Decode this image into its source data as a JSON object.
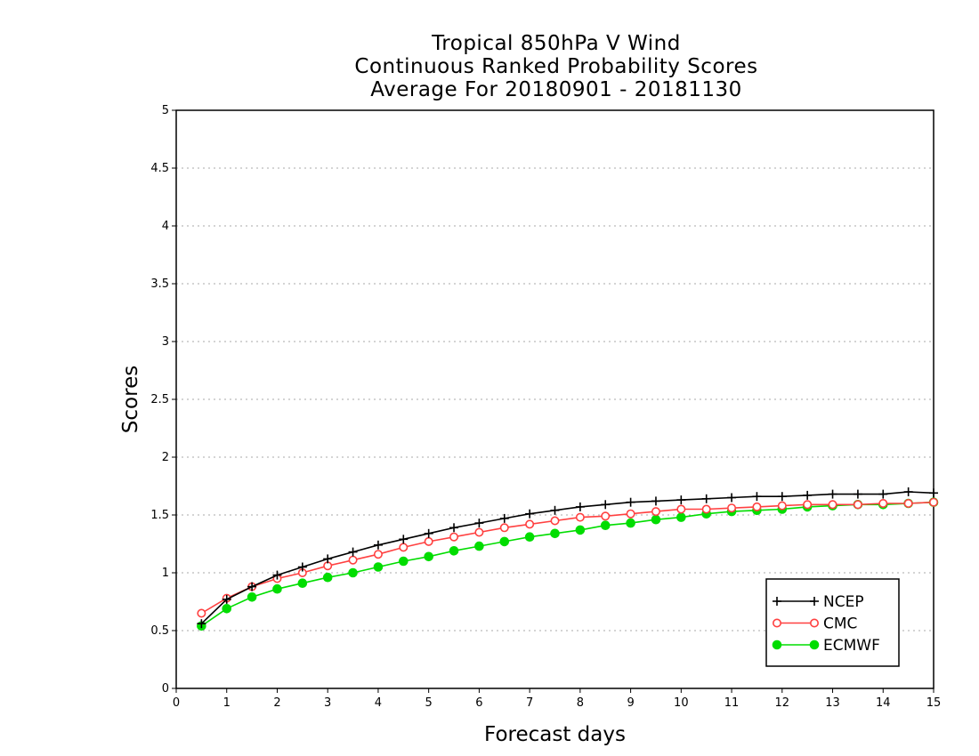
{
  "chart_data": {
    "type": "line",
    "title": [
      "Tropical 850hPa V Wind",
      "Continuous Ranked Probability Scores",
      "Average For 20180901 - 20181130"
    ],
    "xlabel": "Forecast days",
    "ylabel": "Scores",
    "xlim": [
      0,
      15
    ],
    "ylim": [
      0,
      5
    ],
    "xticks": [
      "0",
      "1",
      "2",
      "3",
      "4",
      "5",
      "6",
      "7",
      "8",
      "9",
      "10",
      "11",
      "12",
      "13",
      "14",
      "15"
    ],
    "yticks": [
      "0",
      "0.5",
      "1",
      "1.5",
      "2",
      "2.5",
      "3",
      "3.5",
      "4",
      "4.5",
      "5"
    ],
    "grid": true,
    "legend_position": "bottom-right",
    "x": [
      0.5,
      1,
      1.5,
      2,
      2.5,
      3,
      3.5,
      4,
      4.5,
      5,
      5.5,
      6,
      6.5,
      7,
      7.5,
      8,
      8.5,
      9,
      9.5,
      10,
      10.5,
      11,
      11.5,
      12,
      12.5,
      13,
      13.5,
      14,
      14.5,
      15
    ],
    "series": [
      {
        "name": "NCEP",
        "color": "#000000",
        "marker": "plus",
        "values": [
          0.56,
          0.77,
          0.88,
          0.98,
          1.05,
          1.12,
          1.18,
          1.24,
          1.29,
          1.34,
          1.39,
          1.43,
          1.47,
          1.51,
          1.54,
          1.57,
          1.59,
          1.61,
          1.62,
          1.63,
          1.64,
          1.65,
          1.66,
          1.66,
          1.67,
          1.68,
          1.68,
          1.68,
          1.7,
          1.69
        ]
      },
      {
        "name": "CMC",
        "color": "#ff4040",
        "marker": "open-circle",
        "values": [
          0.65,
          0.78,
          0.88,
          0.95,
          1.0,
          1.06,
          1.11,
          1.16,
          1.22,
          1.27,
          1.31,
          1.35,
          1.39,
          1.42,
          1.45,
          1.48,
          1.49,
          1.51,
          1.53,
          1.55,
          1.55,
          1.56,
          1.57,
          1.58,
          1.59,
          1.59,
          1.59,
          1.6,
          1.6,
          1.61
        ]
      },
      {
        "name": "ECMWF",
        "color": "#00dd00",
        "marker": "filled-circle",
        "values": [
          0.54,
          0.69,
          0.79,
          0.86,
          0.91,
          0.96,
          1.0,
          1.05,
          1.1,
          1.14,
          1.19,
          1.23,
          1.27,
          1.31,
          1.34,
          1.37,
          1.41,
          1.43,
          1.46,
          1.48,
          1.51,
          1.53,
          1.54,
          1.55,
          1.57,
          1.58,
          1.59,
          1.59,
          1.6,
          1.61
        ]
      }
    ]
  }
}
